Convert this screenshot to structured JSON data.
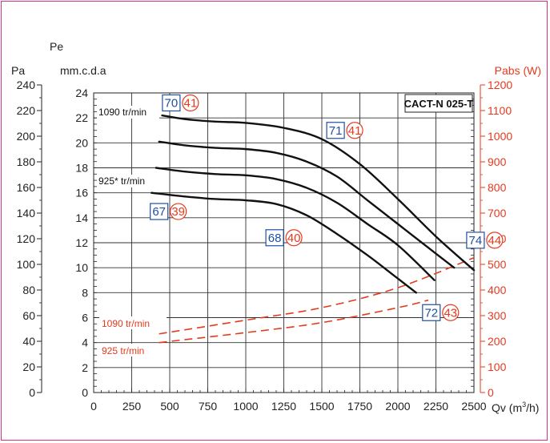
{
  "axis_labels": {
    "pe": "Pe",
    "pa": "Pa",
    "mmcda": "mm.c.d.a",
    "pabs": "Pabs (W)",
    "qv_prefix": "Qv (m",
    "qv_sup": "3",
    "qv_suffix": "/h)"
  },
  "chart_data": {
    "type": "line",
    "title": "CACT-N 025-T",
    "xlim": [
      0,
      2500
    ],
    "ylim_mmcda": [
      0,
      24
    ],
    "ylim_pa": [
      0,
      240
    ],
    "ylim_pabs": [
      0,
      1200
    ],
    "x_ticks": [
      "0",
      "250",
      "500",
      "750",
      "1000",
      "1250",
      "1500",
      "1750",
      "2000",
      "2250",
      "2500"
    ],
    "y_ticks_mmcda": [
      "0",
      "2",
      "4",
      "6",
      "8",
      "10",
      "12",
      "14",
      "16",
      "18",
      "20",
      "22",
      "24"
    ],
    "y_ticks_pa": [
      "0",
      "20",
      "40",
      "60",
      "80",
      "100",
      "120",
      "140",
      "160",
      "180",
      "200",
      "220",
      "240"
    ],
    "y_ticks_pabs": [
      "0",
      "100",
      "200",
      "300",
      "400",
      "500",
      "600",
      "700",
      "800",
      "900",
      "1000",
      "1100",
      "1200"
    ],
    "grid": true,
    "pressure_curves": [
      {
        "name": "1090 tr/min",
        "x": [
          450,
          600,
          800,
          1000,
          1250,
          1500,
          1750,
          2000,
          2250,
          2500
        ],
        "y": [
          22.2,
          21.9,
          21.7,
          21.6,
          21.2,
          20.3,
          18.3,
          15.5,
          12.5,
          9.8
        ]
      },
      {
        "name": "",
        "x": [
          430,
          600,
          800,
          1000,
          1200,
          1400,
          1600,
          1800,
          2000,
          2200,
          2370
        ],
        "y": [
          20.1,
          19.8,
          19.6,
          19.5,
          19.2,
          18.5,
          17.3,
          15.4,
          13.5,
          11.6,
          10.0
        ]
      },
      {
        "name": "",
        "x": [
          410,
          600,
          800,
          1000,
          1200,
          1400,
          1600,
          1800,
          2000,
          2240
        ],
        "y": [
          18.0,
          17.7,
          17.5,
          17.4,
          17.1,
          16.4,
          15.2,
          13.5,
          11.8,
          9.0
        ]
      },
      {
        "name": "925* tr/min",
        "x": [
          380,
          600,
          800,
          1000,
          1200,
          1400,
          1600,
          1800,
          1950,
          2120
        ],
        "y": [
          16.0,
          15.7,
          15.5,
          15.4,
          15.1,
          14.2,
          12.7,
          11.0,
          9.6,
          8.0
        ]
      }
    ],
    "power_curves": [
      {
        "name": "1090 tr/min",
        "x": [
          430,
          1000,
          1500,
          2000,
          2500
        ],
        "y": [
          235,
          290,
          340,
          420,
          540
        ]
      },
      {
        "name": "925 tr/min",
        "x": [
          430,
          1000,
          1500,
          2000,
          2200
        ],
        "y": [
          200,
          240,
          280,
          340,
          370
        ]
      }
    ],
    "annotations": [
      {
        "x": 510,
        "y": 23.2,
        "square": "70",
        "circle": "41"
      },
      {
        "x": 1590,
        "y": 21.0,
        "square": "71",
        "circle": "41"
      },
      {
        "x": 430,
        "y": 14.5,
        "square": "67",
        "circle": "39"
      },
      {
        "x": 1190,
        "y": 12.4,
        "square": "68",
        "circle": "40"
      },
      {
        "x": 2220,
        "y": 6.4,
        "square": "72",
        "circle": "43"
      },
      {
        "x": 2510,
        "y": 12.2,
        "square": "74",
        "circle": "44"
      }
    ]
  }
}
